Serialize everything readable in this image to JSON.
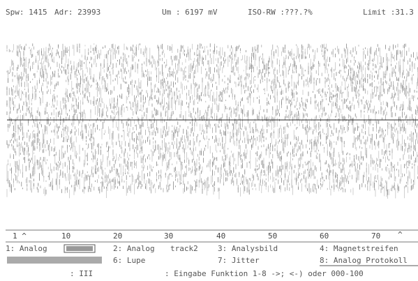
{
  "status_bar": {
    "spw": "Spw: 1415",
    "adr": "Adr: 23993",
    "um": "Um : 6197 mV",
    "iso": "ISO-RW :???.?%",
    "limit": "Limit :31.3"
  },
  "ruler": {
    "labels": [
      "1 ^",
      "10",
      "20",
      "30",
      "40",
      "50",
      "60",
      "70",
      "^"
    ]
  },
  "menu": {
    "row1": [
      "1: Analog",
      "2: Analog",
      "track2",
      "3: Analysbild",
      "4: Magnetstreifen"
    ],
    "row2": [
      "6: Lupe",
      "7: Jitter",
      "8: Analog Protokoll"
    ]
  },
  "prompt": {
    "left": ": III",
    "right": ": Eingabe Funktion 1-8 ->; <-) oder 000-100"
  }
}
